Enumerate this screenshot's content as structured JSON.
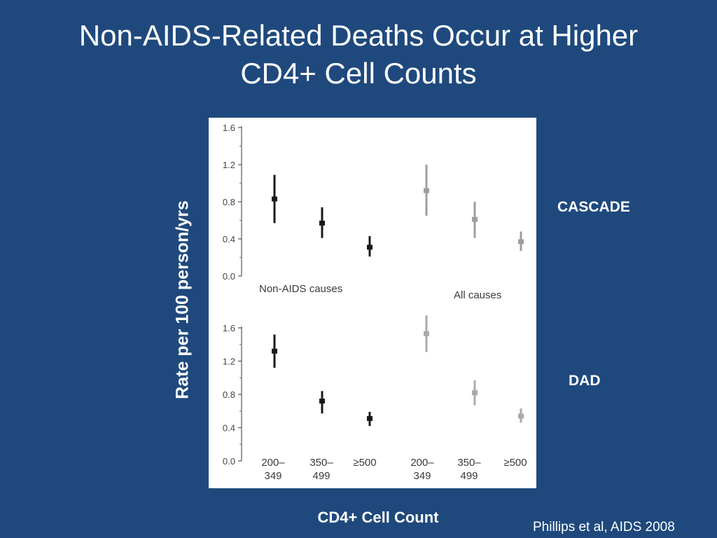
{
  "slide": {
    "title_line1": "Non-AIDS-Related Deaths Occur at Higher",
    "title_line2": "CD4+ Cell Counts",
    "y_axis_label": "Rate per 100 person/yrs",
    "x_axis_label": "CD4+ Cell Count",
    "citation": "Phillips et al, AIDS 2008",
    "study_labels": [
      "CASCADE",
      "DAD"
    ]
  },
  "chart_data": [
    {
      "type": "scatter",
      "study": "CASCADE",
      "ylim": [
        0,
        1.6
      ],
      "yticks": [
        "0.0",
        "0.4",
        "0.8",
        "1.2",
        "1.6"
      ],
      "ytick_values": [
        0,
        0.4,
        0.8,
        1.2,
        1.6
      ],
      "groups": [
        {
          "label": "Non-AIDS causes",
          "color": "#1a1a1a",
          "points": [
            {
              "x": "200–349",
              "y": 0.83,
              "low": 0.57,
              "high": 1.09
            },
            {
              "x": "350–499",
              "y": 0.57,
              "low": 0.41,
              "high": 0.74
            },
            {
              "x": "≥500",
              "y": 0.31,
              "low": 0.21,
              "high": 0.43
            }
          ]
        },
        {
          "label": "All causes",
          "color": "#9e9e9e",
          "points": [
            {
              "x": "200–349",
              "y": 0.92,
              "low": 0.65,
              "high": 1.2
            },
            {
              "x": "350–499",
              "y": 0.61,
              "low": 0.41,
              "high": 0.8
            },
            {
              "x": "≥500",
              "y": 0.37,
              "low": 0.27,
              "high": 0.48
            }
          ]
        }
      ]
    },
    {
      "type": "scatter",
      "study": "DAD",
      "ylim": [
        0,
        1.6
      ],
      "yticks": [
        "0.0",
        "0.4",
        "0.8",
        "1.2",
        "1.6"
      ],
      "ytick_values": [
        0,
        0.4,
        0.8,
        1.2,
        1.6
      ],
      "categories": [
        {
          "line1": "200–",
          "line2": "349"
        },
        {
          "line1": "350–",
          "line2": "499"
        },
        {
          "line1": "≥500",
          "line2": ""
        },
        {
          "line1": "200–",
          "line2": "349"
        },
        {
          "line1": "350–",
          "line2": "499"
        },
        {
          "line1": "≥500",
          "line2": ""
        }
      ],
      "groups": [
        {
          "color": "#1a1a1a",
          "points": [
            {
              "x": "200–349",
              "y": 1.32,
              "low": 1.12,
              "high": 1.52
            },
            {
              "x": "350–499",
              "y": 0.72,
              "low": 0.57,
              "high": 0.84
            },
            {
              "x": "≥500",
              "y": 0.51,
              "low": 0.42,
              "high": 0.59
            }
          ]
        },
        {
          "color": "#aaaaaa",
          "points": [
            {
              "x": "200–349",
              "y": 1.53,
              "low": 1.31,
              "high": 1.75
            },
            {
              "x": "350–499",
              "y": 0.82,
              "low": 0.67,
              "high": 0.97
            },
            {
              "x": "≥500",
              "y": 0.54,
              "low": 0.46,
              "high": 0.63
            }
          ]
        }
      ]
    }
  ]
}
